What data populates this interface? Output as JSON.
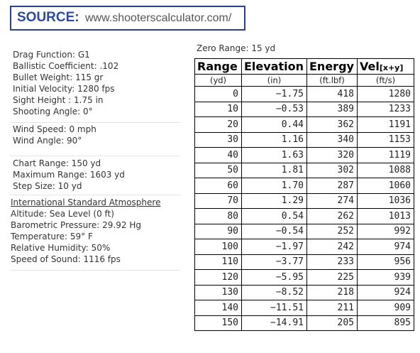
{
  "source": {
    "label": "SOURCE:",
    "url": "www.shooterscalculator.com/"
  },
  "info_groups": [
    [
      "Drag Function: G1",
      "Ballistic Coefficient: .102",
      "Bullet Weight: 115 gr",
      "Initial Velocity: 1280 fps",
      "Sight Height : 1.75 in",
      "Shooting Angle: 0°"
    ],
    [
      "Wind Speed: 0 mph",
      "Wind Angle: 90°"
    ],
    [
      "Chart Range: 150 yd",
      "Maximum Range: 1603 yd",
      "Step Size: 10 yd"
    ],
    [
      "International Standard Atmosphere",
      "Altitude: Sea Level (0 ft)",
      "Barometric Pressure: 29.92 Hg",
      "Temperature: 59° F",
      "Relative Humidity: 50%",
      "Speed of Sound: 1116 fps"
    ]
  ],
  "table": {
    "caption": "Zero Range: 15 yd",
    "headers": [
      "Range",
      "Elevation",
      "Energy",
      "Vel"
    ],
    "header_suffix": "[x+y]",
    "units": [
      "(yd)",
      "(in)",
      "(ft.lbf)",
      "(ft/s)"
    ],
    "rows": [
      [
        "0",
        "−1.75",
        "418",
        "1280"
      ],
      [
        "10",
        "−0.53",
        "389",
        "1233"
      ],
      [
        "20",
        "0.44",
        "362",
        "1191"
      ],
      [
        "30",
        "1.16",
        "340",
        "1153"
      ],
      [
        "40",
        "1.63",
        "320",
        "1119"
      ],
      [
        "50",
        "1.81",
        "302",
        "1088"
      ],
      [
        "60",
        "1.70",
        "287",
        "1060"
      ],
      [
        "70",
        "1.29",
        "274",
        "1036"
      ],
      [
        "80",
        "0.54",
        "262",
        "1013"
      ],
      [
        "90",
        "−0.54",
        "252",
        "992"
      ],
      [
        "100",
        "−1.97",
        "242",
        "974"
      ],
      [
        "110",
        "−3.77",
        "233",
        "956"
      ],
      [
        "120",
        "−5.95",
        "225",
        "939"
      ],
      [
        "130",
        "−8.52",
        "218",
        "924"
      ],
      [
        "140",
        "−11.51",
        "211",
        "909"
      ],
      [
        "150",
        "−14.91",
        "205",
        "895"
      ]
    ]
  }
}
